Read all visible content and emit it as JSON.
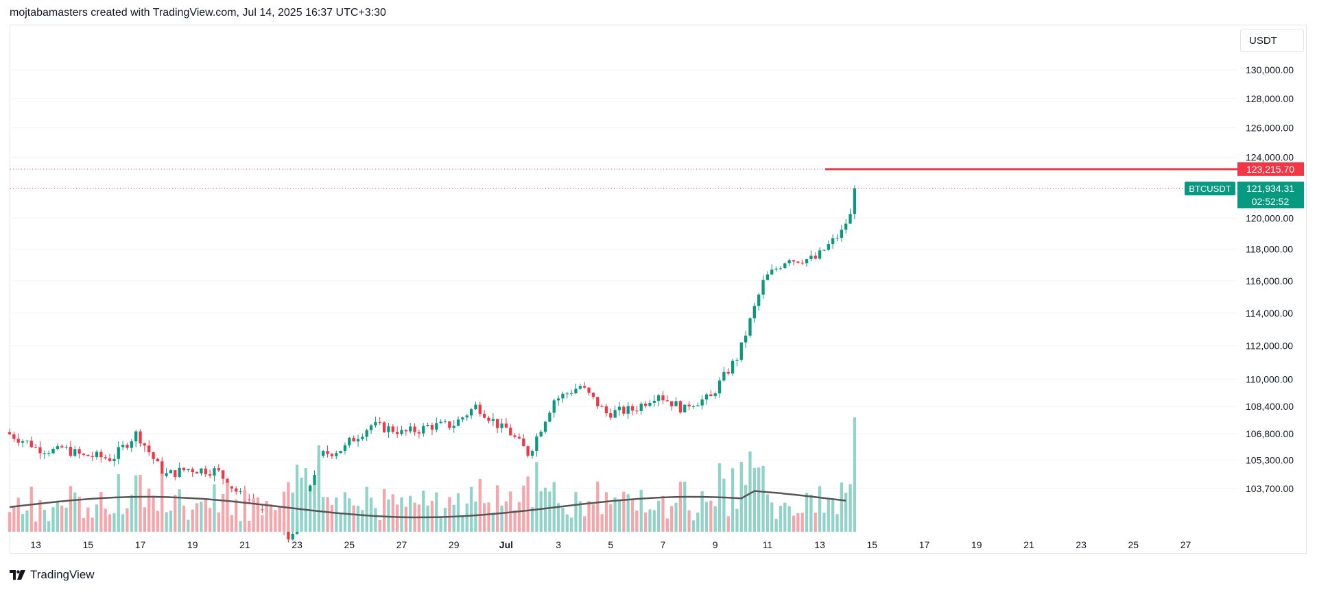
{
  "header": {
    "text": "mojtabamasters created with TradingView.com, Jul 14, 2025 16:37 UTC+3:30"
  },
  "footer": {
    "brand": "TradingView",
    "logo_icon": "tradingview-logo-icon"
  },
  "toolbar": {
    "currency_label": "USDT"
  },
  "colors": {
    "up": "#089981",
    "down": "#f23645",
    "volume_up": "#8fd3c9",
    "volume_down": "#f5a6ab",
    "ma_line": "#555555",
    "grid": "#f0f3fa"
  },
  "chart_data": {
    "type": "candlestick",
    "symbol": "BTCUSDT",
    "timeframe_note": "",
    "y_ticks": [
      "130,000.00",
      "128,000.00",
      "126,000.00",
      "124,000.00",
      "120,000.00",
      "118,000.00",
      "116,000.00",
      "114,000.00",
      "112,000.00",
      "110,000.00",
      "108,400.00",
      "106,800.00",
      "105,300.00",
      "103,700.00"
    ],
    "x_ticks": [
      "13",
      "15",
      "17",
      "19",
      "21",
      "23",
      "25",
      "27",
      "29",
      "Jul",
      "3",
      "5",
      "7",
      "9",
      "11",
      "13",
      "15",
      "17",
      "19",
      "21",
      "23",
      "25",
      "27"
    ],
    "x_range_days": [
      "Jun 12",
      "Jul 28"
    ],
    "y_scale": "logarithmic",
    "daily_closes_approx": [
      {
        "date": "Jun 12",
        "close": 106200
      },
      {
        "date": "Jun 13",
        "close": 105800
      },
      {
        "date": "Jun 14",
        "close": 105500
      },
      {
        "date": "Jun 15",
        "close": 105400
      },
      {
        "date": "Jun 16",
        "close": 106800
      },
      {
        "date": "Jun 17",
        "close": 104600
      },
      {
        "date": "Jun 18",
        "close": 104800
      },
      {
        "date": "Jun 19",
        "close": 104700
      },
      {
        "date": "Jun 20",
        "close": 103300
      },
      {
        "date": "Jun 21",
        "close": 102100
      },
      {
        "date": "Jun 22",
        "close": 100900
      },
      {
        "date": "Jun 23",
        "close": 105300
      },
      {
        "date": "Jun 24",
        "close": 106000
      },
      {
        "date": "Jun 25",
        "close": 107300
      },
      {
        "date": "Jun 26",
        "close": 107000
      },
      {
        "date": "Jun 27",
        "close": 107100
      },
      {
        "date": "Jun 28",
        "close": 107300
      },
      {
        "date": "Jun 29",
        "close": 108400
      },
      {
        "date": "Jun 30",
        "close": 107100
      },
      {
        "date": "Jul 1",
        "close": 105700
      },
      {
        "date": "Jul 2",
        "close": 108800
      },
      {
        "date": "Jul 3",
        "close": 109600
      },
      {
        "date": "Jul 4",
        "close": 108000
      },
      {
        "date": "Jul 5",
        "close": 108200
      },
      {
        "date": "Jul 6",
        "close": 109200
      },
      {
        "date": "Jul 7",
        "close": 108200
      },
      {
        "date": "Jul 8",
        "close": 108900
      },
      {
        "date": "Jul 9",
        "close": 111300
      },
      {
        "date": "Jul 10",
        "close": 115900
      },
      {
        "date": "Jul 11",
        "close": 117500
      },
      {
        "date": "Jul 12",
        "close": 117400
      },
      {
        "date": "Jul 13",
        "close": 119100
      },
      {
        "date": "Jul 14",
        "close": 121934.31
      }
    ],
    "high_line": {
      "label": "123,215.70",
      "value": 123215.7
    },
    "last_price": {
      "symbol_label": "BTCUSDT",
      "price_label": "121,934.31",
      "countdown": "02:52:52",
      "value": 121934.31
    },
    "volume": {
      "visible": true,
      "moving_average_visible": true
    }
  }
}
